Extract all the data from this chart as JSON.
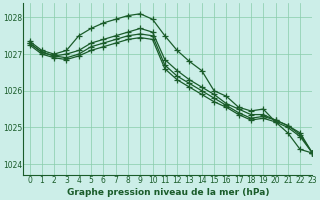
{
  "title": "Graphe pression niveau de la mer (hPa)",
  "bg_color": "#cceee8",
  "grid_color": "#88ccaa",
  "line_color": "#1a5c2a",
  "xlim": [
    -0.5,
    23
  ],
  "ylim": [
    1023.7,
    1028.4
  ],
  "yticks": [
    1024,
    1025,
    1026,
    1027,
    1028
  ],
  "xticks": [
    0,
    1,
    2,
    3,
    4,
    5,
    6,
    7,
    8,
    9,
    10,
    11,
    12,
    13,
    14,
    15,
    16,
    17,
    18,
    19,
    20,
    21,
    22,
    23
  ],
  "series": [
    [
      1027.35,
      1027.1,
      1027.0,
      1027.1,
      1027.5,
      1027.7,
      1027.85,
      1027.95,
      1028.05,
      1028.1,
      1027.95,
      1027.5,
      1027.1,
      1026.8,
      1026.55,
      1026.0,
      1025.85,
      1025.55,
      1025.45,
      1025.5,
      1025.15,
      1024.85,
      1024.4,
      1024.3
    ],
    [
      1027.3,
      1027.05,
      1026.95,
      1027.0,
      1027.1,
      1027.3,
      1027.4,
      1027.5,
      1027.6,
      1027.7,
      1027.6,
      1026.85,
      1026.55,
      1026.3,
      1026.1,
      1025.9,
      1025.65,
      1025.5,
      1025.35,
      1025.35,
      1025.2,
      1025.05,
      1024.85,
      1024.3
    ],
    [
      1027.3,
      1027.05,
      1026.95,
      1026.9,
      1027.0,
      1027.2,
      1027.3,
      1027.4,
      1027.5,
      1027.55,
      1027.5,
      1026.7,
      1026.4,
      1026.2,
      1026.0,
      1025.8,
      1025.6,
      1025.4,
      1025.25,
      1025.3,
      1025.2,
      1025.05,
      1024.8,
      1024.3
    ],
    [
      1027.25,
      1027.0,
      1026.9,
      1026.85,
      1026.95,
      1027.1,
      1027.2,
      1027.3,
      1027.4,
      1027.45,
      1027.4,
      1026.6,
      1026.3,
      1026.1,
      1025.9,
      1025.7,
      1025.55,
      1025.35,
      1025.2,
      1025.25,
      1025.15,
      1025.0,
      1024.75,
      1024.3
    ]
  ],
  "marker": "+",
  "markersize": 4,
  "linewidth": 0.9,
  "tick_fontsize": 5.5,
  "xlabel_fontsize": 6.5
}
